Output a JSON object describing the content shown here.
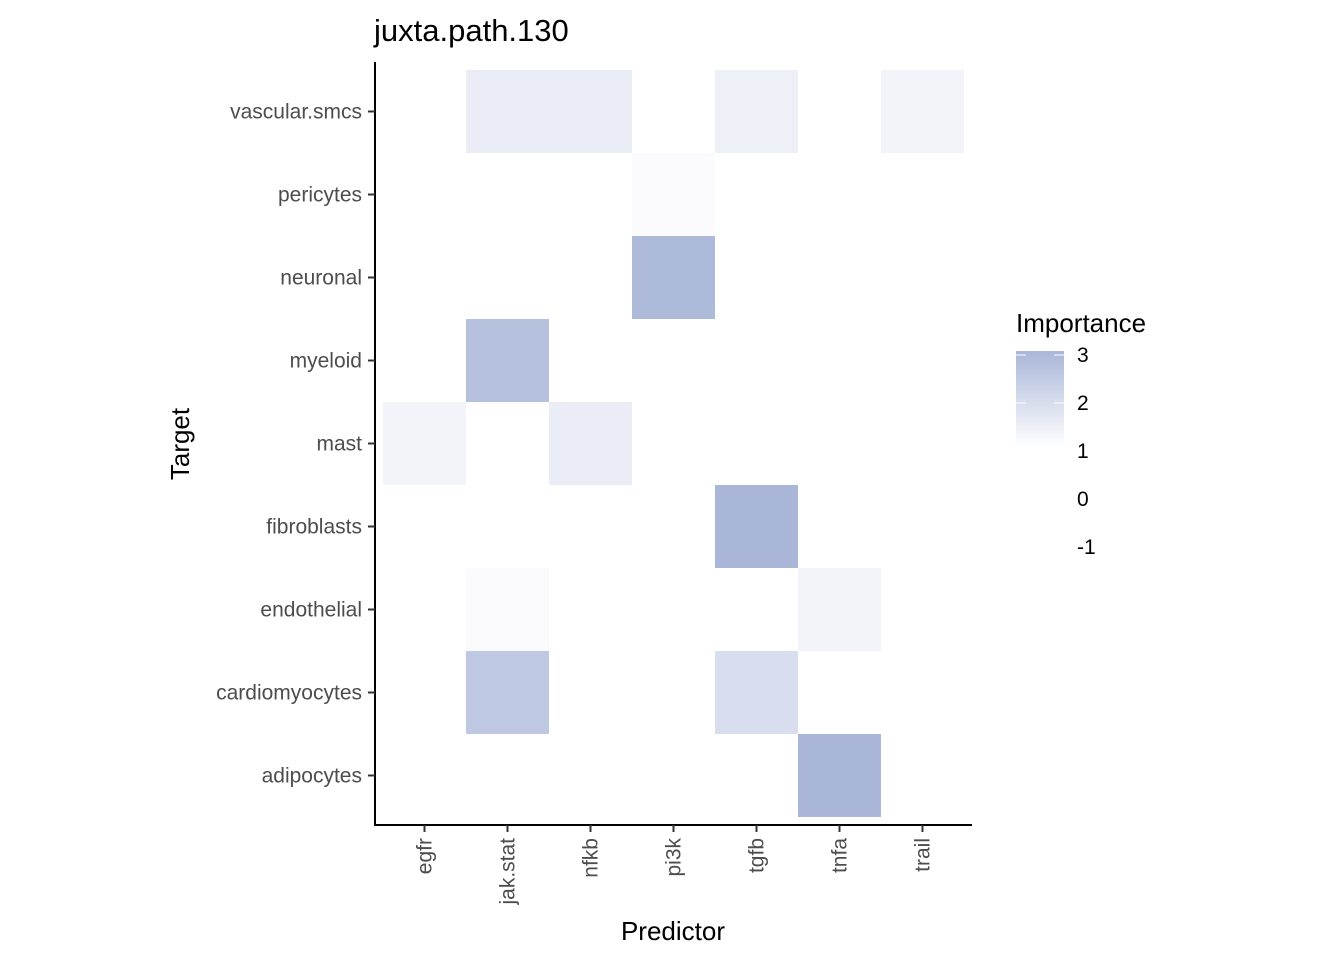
{
  "chart_data": {
    "type": "heatmap",
    "title": "juxta.path.130",
    "xlabel": "Predictor",
    "ylabel": "Target",
    "x": [
      "egfr",
      "jak.stat",
      "nfkb",
      "pi3k",
      "tgfb",
      "tnfa",
      "trail"
    ],
    "y": [
      "adipocytes",
      "cardiomyocytes",
      "endothelial",
      "fibroblasts",
      "mast",
      "myeloid",
      "neuronal",
      "pericytes",
      "vascular.smcs"
    ],
    "values": [
      [
        null,
        null,
        null,
        null,
        null,
        3.0,
        null
      ],
      [
        null,
        2.5,
        null,
        null,
        1.9,
        null,
        null
      ],
      [
        null,
        1.1,
        null,
        null,
        null,
        1.3,
        null
      ],
      [
        null,
        null,
        null,
        null,
        3.0,
        null,
        null
      ],
      [
        1.3,
        null,
        1.5,
        null,
        null,
        null,
        null
      ],
      [
        null,
        2.7,
        null,
        null,
        null,
        null,
        null
      ],
      [
        null,
        null,
        null,
        2.9,
        null,
        null,
        null
      ],
      [
        null,
        null,
        null,
        1.1,
        null,
        null,
        null
      ],
      [
        null,
        1.5,
        1.5,
        null,
        1.4,
        null,
        1.3
      ]
    ],
    "legend": {
      "title": "Importance",
      "ticks": [
        3,
        2,
        1,
        0,
        -1
      ],
      "color_low": "#ffffff",
      "color_high": "#a9b6d8",
      "range": [
        1,
        3
      ],
      "position": "right"
    },
    "grid": false
  }
}
